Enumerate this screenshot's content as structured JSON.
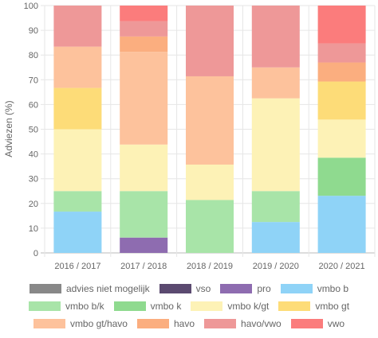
{
  "chart_data": {
    "type": "bar",
    "stacked": true,
    "ylabel": "Adviezen (%)",
    "xlabel": "",
    "ylim": [
      0,
      100
    ],
    "yticks": [
      "0",
      "10",
      "20",
      "30",
      "40",
      "50",
      "60",
      "70",
      "80",
      "90",
      "100"
    ],
    "grid": true,
    "legend_position": "bottom",
    "categories": [
      "2016 / 2017",
      "2017 / 2018",
      "2018 / 2019",
      "2019 / 2020",
      "2020 / 2021"
    ],
    "series": [
      {
        "name": "advies niet mogelijk",
        "color": "#888888",
        "values": [
          0,
          0,
          0,
          0,
          0
        ]
      },
      {
        "name": "vso",
        "color": "#5b4a70",
        "values": [
          0,
          0,
          0,
          0,
          0
        ]
      },
      {
        "name": "pro",
        "color": "#8e6cb0",
        "values": [
          0,
          6.2,
          0,
          0,
          0
        ]
      },
      {
        "name": "vmbo b",
        "color": "#8fd3f7",
        "values": [
          16.7,
          0,
          0,
          12.5,
          23.1
        ]
      },
      {
        "name": "vmbo b/k",
        "color": "#a8e4a8",
        "values": [
          8.3,
          18.8,
          21.4,
          12.5,
          0
        ]
      },
      {
        "name": "vmbo k",
        "color": "#8fda8f",
        "values": [
          0,
          0,
          0,
          0,
          15.4
        ]
      },
      {
        "name": "vmbo k/gt",
        "color": "#fdf2b6",
        "values": [
          25.0,
          18.8,
          14.3,
          37.5,
          15.4
        ]
      },
      {
        "name": "vmbo gt",
        "color": "#fddc78",
        "values": [
          16.7,
          0,
          0,
          0,
          15.4
        ]
      },
      {
        "name": "vmbo gt/havo",
        "color": "#fdc29c",
        "values": [
          16.7,
          37.5,
          35.7,
          12.5,
          0
        ]
      },
      {
        "name": "havo",
        "color": "#fbae7f",
        "values": [
          0,
          6.2,
          0,
          0,
          7.7
        ]
      },
      {
        "name": "havo/vwo",
        "color": "#ee9898",
        "values": [
          16.7,
          6.2,
          28.6,
          25.0,
          7.7
        ]
      },
      {
        "name": "vwo",
        "color": "#fb7c7c",
        "values": [
          0,
          6.3,
          0,
          0,
          15.3
        ]
      }
    ]
  }
}
